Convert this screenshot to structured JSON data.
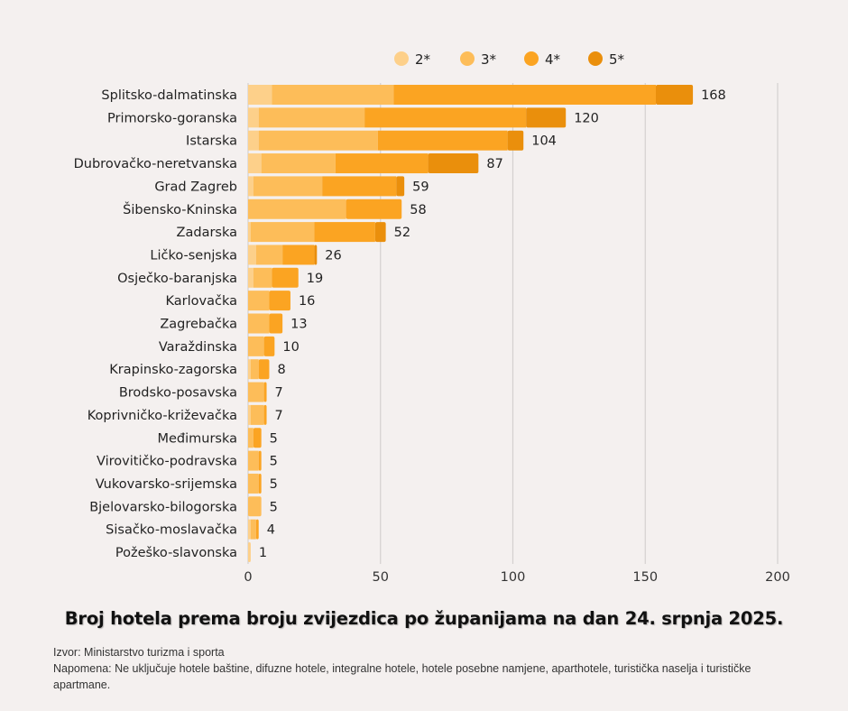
{
  "chart_data": {
    "type": "bar",
    "orientation": "horizontal",
    "stacked": true,
    "title": "Broj hotela prema broju zvijezdica po županijama na dan 24. srpnja 2025.",
    "xlabel": "",
    "ylabel": "",
    "xlim": [
      0,
      200
    ],
    "xticks": [
      0,
      50,
      100,
      150,
      200
    ],
    "grid": true,
    "legend_position": "top-right",
    "categories": [
      "Splitsko-dalmatinska",
      "Primorsko-goranska",
      "Istarska",
      "Dubrovačko-neretvanska",
      "Grad Zagreb",
      "Šibensko-Kninska",
      "Zadarska",
      "Ličko-senjska",
      "Osječko-baranjska",
      "Karlovačka",
      "Zagrebačka",
      "Varaždinska",
      "Krapinsko-zagorska",
      "Brodsko-posavska",
      "Koprivničko-križevačka",
      "Međimurska",
      "Virovitičko-podravska",
      "Vukovarsko-srijemska",
      "Bjelovarsko-bilogorska",
      "Sisačko-moslavačka",
      "Požeško-slavonska"
    ],
    "series": [
      {
        "name": "2*",
        "color": "#fdd08a",
        "values": [
          9,
          4,
          4,
          5,
          2,
          0,
          1,
          3,
          2,
          0,
          0,
          0,
          1,
          0,
          1,
          0,
          0,
          0,
          0,
          1,
          1
        ]
      },
      {
        "name": "3*",
        "color": "#fdbd59",
        "values": [
          46,
          40,
          45,
          28,
          26,
          37,
          24,
          10,
          7,
          8,
          8,
          6,
          3,
          6,
          5,
          2,
          4,
          4,
          5,
          2,
          0
        ]
      },
      {
        "name": "4*",
        "color": "#fba422",
        "values": [
          99,
          61,
          49,
          35,
          28,
          21,
          23,
          12,
          10,
          8,
          5,
          4,
          4,
          1,
          1,
          3,
          1,
          1,
          0,
          1,
          0
        ]
      },
      {
        "name": "5*",
        "color": "#ea8f0c",
        "values": [
          14,
          15,
          6,
          19,
          3,
          0,
          4,
          1,
          0,
          0,
          0,
          0,
          0,
          0,
          0,
          0,
          0,
          0,
          0,
          0,
          0
        ]
      }
    ],
    "totals": [
      168,
      120,
      104,
      87,
      59,
      58,
      52,
      26,
      19,
      16,
      13,
      10,
      8,
      7,
      7,
      5,
      5,
      5,
      5,
      4,
      1
    ]
  },
  "footer": {
    "source": "Izvor: Ministarstvo turizma i sporta",
    "note": "Napomena: Ne uključuje hotele baštine, difuzne hotele, integralne hotele, hotele posebne namjene, aparthotele, turistička naselja i turističke apartmane."
  },
  "colors": {
    "background": "#f4f0ef",
    "grid": "#d4d0cf"
  }
}
